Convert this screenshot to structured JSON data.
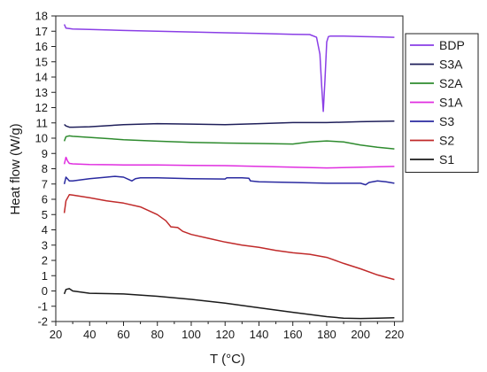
{
  "chart_data": {
    "type": "line",
    "xlabel": "T (°C)",
    "ylabel": "Heat flow (W/g)",
    "xlim": [
      20,
      225
    ],
    "ylim": [
      -2,
      18
    ],
    "xticks": [
      20,
      40,
      60,
      80,
      100,
      120,
      140,
      160,
      180,
      200,
      220
    ],
    "yticks": [
      -2,
      -1,
      0,
      1,
      2,
      3,
      4,
      5,
      6,
      7,
      8,
      9,
      10,
      11,
      12,
      13,
      14,
      15,
      16,
      17,
      18
    ],
    "grid": false,
    "legend_position": "top-right",
    "series": [
      {
        "name": "BDP",
        "color": "#8a3ee6",
        "x": [
          25,
          26,
          30,
          40,
          60,
          80,
          100,
          120,
          140,
          160,
          170,
          174,
          176,
          177,
          178,
          179,
          180,
          181,
          182,
          190,
          200,
          210,
          220
        ],
        "y": [
          17.45,
          17.2,
          17.15,
          17.12,
          17.05,
          17.0,
          16.95,
          16.9,
          16.85,
          16.8,
          16.78,
          16.6,
          15.5,
          13.5,
          11.75,
          13.8,
          16.3,
          16.65,
          16.68,
          16.68,
          16.65,
          16.63,
          16.6
        ]
      },
      {
        "name": "S3A",
        "color": "#1f1f5a",
        "x": [
          25,
          26,
          28,
          30,
          40,
          60,
          80,
          100,
          120,
          140,
          160,
          180,
          200,
          220
        ],
        "y": [
          10.9,
          10.8,
          10.72,
          10.72,
          10.75,
          10.88,
          10.95,
          10.92,
          10.88,
          10.95,
          11.02,
          11.02,
          11.08,
          11.12
        ]
      },
      {
        "name": "S2A",
        "color": "#2e8b2e",
        "x": [
          25,
          26,
          28,
          30,
          40,
          60,
          80,
          100,
          120,
          140,
          160,
          170,
          180,
          190,
          200,
          210,
          220
        ],
        "y": [
          9.8,
          10.1,
          10.15,
          10.12,
          10.05,
          9.9,
          9.8,
          9.72,
          9.68,
          9.65,
          9.62,
          9.75,
          9.82,
          9.75,
          9.55,
          9.4,
          9.3
        ]
      },
      {
        "name": "S1A",
        "color": "#e02ee0",
        "x": [
          25,
          26,
          27,
          28,
          30,
          40,
          60,
          80,
          100,
          120,
          140,
          160,
          180,
          200,
          220
        ],
        "y": [
          8.3,
          8.75,
          8.5,
          8.35,
          8.32,
          8.28,
          8.25,
          8.25,
          8.22,
          8.2,
          8.15,
          8.1,
          8.05,
          8.1,
          8.15
        ]
      },
      {
        "name": "S3",
        "color": "#2a2aa0",
        "x": [
          25,
          26,
          28,
          30,
          40,
          50,
          55,
          60,
          63,
          65,
          67,
          70,
          80,
          100,
          120,
          121,
          130,
          134,
          135,
          140,
          160,
          180,
          200,
          203,
          205,
          210,
          215,
          220
        ],
        "y": [
          7.0,
          7.45,
          7.2,
          7.2,
          7.35,
          7.45,
          7.5,
          7.45,
          7.3,
          7.2,
          7.35,
          7.4,
          7.4,
          7.35,
          7.33,
          7.4,
          7.4,
          7.38,
          7.2,
          7.15,
          7.1,
          7.05,
          7.05,
          6.95,
          7.1,
          7.2,
          7.15,
          7.05
        ]
      },
      {
        "name": "S2",
        "color": "#c02a2a",
        "x": [
          25,
          26,
          28,
          30,
          40,
          50,
          60,
          70,
          80,
          85,
          88,
          92,
          95,
          100,
          110,
          120,
          130,
          140,
          150,
          160,
          170,
          180,
          190,
          200,
          210,
          220
        ],
        "y": [
          5.1,
          5.9,
          6.3,
          6.28,
          6.1,
          5.9,
          5.75,
          5.5,
          5.0,
          4.6,
          4.2,
          4.15,
          3.9,
          3.7,
          3.45,
          3.2,
          3.0,
          2.85,
          2.65,
          2.5,
          2.4,
          2.2,
          1.8,
          1.45,
          1.05,
          0.75
        ]
      },
      {
        "name": "S1",
        "color": "#1a1a1a",
        "x": [
          25,
          26,
          28,
          30,
          40,
          60,
          80,
          100,
          120,
          140,
          160,
          180,
          190,
          200,
          210,
          220
        ],
        "y": [
          -0.2,
          0.1,
          0.15,
          0.0,
          -0.15,
          -0.2,
          -0.35,
          -0.55,
          -0.8,
          -1.1,
          -1.4,
          -1.68,
          -1.78,
          -1.8,
          -1.78,
          -1.75
        ]
      }
    ]
  }
}
